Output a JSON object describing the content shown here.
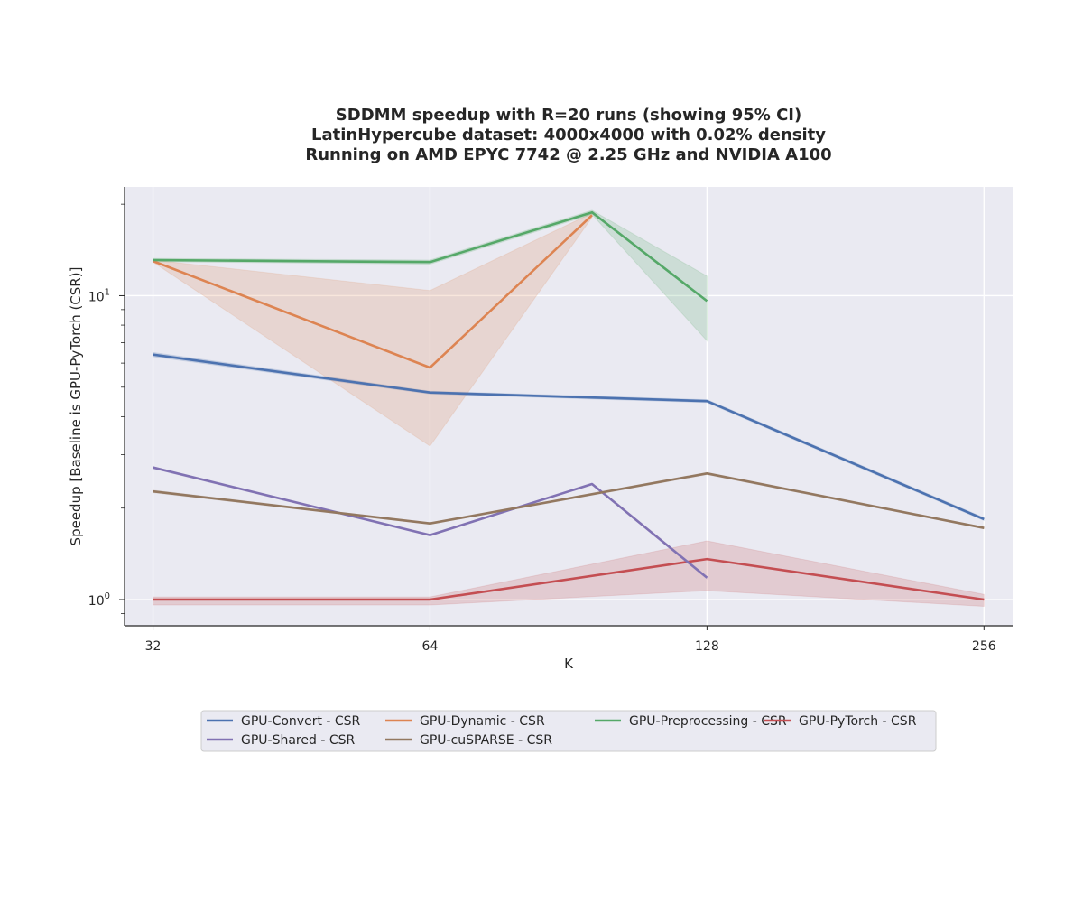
{
  "chart_data": {
    "type": "line",
    "title_lines": [
      "SDDMM speedup with R=20 runs (showing 95% CI)",
      "LatinHypercube dataset: 4000x4000 with 0.02% density",
      "Running on AMD EPYC 7742 @ 2.25 GHz and NVIDIA A100"
    ],
    "xlabel": "K",
    "ylabel": "Speedup [Baseline is GPU-PyTorch (CSR)]",
    "xscale": "log2",
    "yscale": "log10",
    "xlim": [
      29.8,
      275
    ],
    "ylim": [
      0.82,
      22.8
    ],
    "x_ticks": [
      32,
      64,
      128,
      256
    ],
    "x_tick_labels": [
      "32",
      "64",
      "128",
      "256"
    ],
    "y_major_ticks": [
      {
        "value": 1,
        "base": "10",
        "exp": "0"
      },
      {
        "value": 10,
        "base": "10",
        "exp": "1"
      }
    ],
    "y_minor_ticks": [
      0.9,
      2,
      3,
      4,
      5,
      6,
      7,
      8,
      9,
      20
    ],
    "grid": true,
    "legend_position": "bottom-center",
    "series": [
      {
        "name": "GPU-Convert - CSR",
        "color": "#4c72b0",
        "x": [
          32,
          64,
          128,
          256
        ],
        "y": [
          6.4,
          4.8,
          4.5,
          1.84
        ],
        "ci_low": [
          6.3,
          4.75,
          4.45,
          1.82
        ],
        "ci_high": [
          6.5,
          4.85,
          4.55,
          1.86
        ]
      },
      {
        "name": "GPU-Dynamic - CSR",
        "color": "#dd8452",
        "x": [
          32,
          64,
          96
        ],
        "y": [
          13.0,
          5.8,
          18.4
        ],
        "ci_low": [
          12.9,
          3.2,
          18.1
        ],
        "ci_high": [
          13.1,
          10.4,
          18.7
        ]
      },
      {
        "name": "GPU-Preprocessing - CSR",
        "color": "#55a868",
        "x": [
          32,
          64,
          96,
          128
        ],
        "y": [
          13.1,
          12.9,
          18.8,
          9.6
        ],
        "ci_low": [
          12.95,
          12.7,
          18.5,
          7.1
        ],
        "ci_high": [
          13.25,
          13.1,
          19.1,
          11.6
        ]
      },
      {
        "name": "GPU-PyTorch - CSR",
        "color": "#c44e52",
        "x": [
          32,
          64,
          128,
          256
        ],
        "y": [
          1.0,
          1.0,
          1.36,
          1.0
        ],
        "ci_low": [
          0.96,
          0.96,
          1.07,
          0.95
        ],
        "ci_high": [
          1.02,
          1.02,
          1.56,
          1.04
        ]
      },
      {
        "name": "GPU-Shared - CSR",
        "color": "#8172b3",
        "x": [
          32,
          64,
          96,
          128
        ],
        "y": [
          2.72,
          1.63,
          2.4,
          1.18
        ],
        "ci_low": [
          2.7,
          1.62,
          2.39,
          1.17
        ],
        "ci_high": [
          2.74,
          1.64,
          2.41,
          1.19
        ]
      },
      {
        "name": "GPU-cuSPARSE - CSR",
        "color": "#937860",
        "x": [
          32,
          64,
          128,
          256
        ],
        "y": [
          2.27,
          1.78,
          2.6,
          1.72
        ],
        "ci_low": [
          2.25,
          1.77,
          2.58,
          1.71
        ],
        "ci_high": [
          2.29,
          1.79,
          2.62,
          1.73
        ]
      }
    ]
  }
}
